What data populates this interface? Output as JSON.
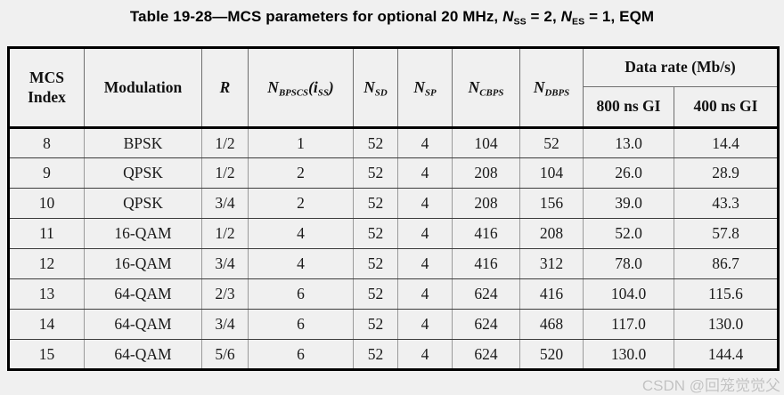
{
  "colors": {
    "page_background": "#f0f0f0",
    "border_outer": "#000000",
    "grid_horizontal": "#3c3c3c",
    "grid_vertical": "#9a9a9a",
    "watermark": "#9b9b9b"
  },
  "title": {
    "segments": [
      {
        "t": "Table 19-28—MCS parameters for optional 20 MHz, "
      },
      {
        "t": "N",
        "i": true
      },
      {
        "t": "SS",
        "sub": true
      },
      {
        "t": " = 2, "
      },
      {
        "t": "N",
        "i": true
      },
      {
        "t": "ES",
        "sub": true
      },
      {
        "t": " = 1, EQM"
      }
    ]
  },
  "watermark": "CSDN @回笼觉觉父",
  "table": {
    "header": {
      "mcs_index": [
        {
          "t": "MCS"
        },
        {
          "br": true
        },
        {
          "t": "Index"
        }
      ],
      "modulation": [
        {
          "t": "Modulation"
        }
      ],
      "r": [
        {
          "t": "R",
          "i": true
        }
      ],
      "n_bpscs": [
        {
          "t": "N",
          "i": true
        },
        {
          "t": "BPSCS",
          "sub": true,
          "i": true
        },
        {
          "t": "(i",
          "i": true
        },
        {
          "t": "SS",
          "sub": true,
          "i": true
        },
        {
          "t": ")",
          "i": true
        }
      ],
      "n_sd": [
        {
          "t": "N",
          "i": true
        },
        {
          "t": "SD",
          "sub": true,
          "i": true
        }
      ],
      "n_sp": [
        {
          "t": "N",
          "i": true
        },
        {
          "t": "SP",
          "sub": true,
          "i": true
        }
      ],
      "n_cbps": [
        {
          "t": "N",
          "i": true
        },
        {
          "t": "CBPS",
          "sub": true,
          "i": true
        }
      ],
      "n_dbps": [
        {
          "t": "N",
          "i": true
        },
        {
          "t": "DBPS",
          "sub": true,
          "i": true
        }
      ],
      "data_rate": [
        {
          "t": "Data rate (Mb/s)"
        }
      ],
      "gi_800": [
        {
          "t": "800 ns GI"
        }
      ],
      "gi_400": [
        {
          "t": "400 ns GI"
        }
      ]
    },
    "column_ids": [
      "mcs-index",
      "modulation",
      "r",
      "n-bpscs",
      "n-sd",
      "n-sp",
      "n-cbps",
      "n-dbps",
      "rate-800ns",
      "rate-400ns"
    ],
    "rows": [
      [
        "8",
        "BPSK",
        "1/2",
        "1",
        "52",
        "4",
        "104",
        "52",
        "13.0",
        "14.4"
      ],
      [
        "9",
        "QPSK",
        "1/2",
        "2",
        "52",
        "4",
        "208",
        "104",
        "26.0",
        "28.9"
      ],
      [
        "10",
        "QPSK",
        "3/4",
        "2",
        "52",
        "4",
        "208",
        "156",
        "39.0",
        "43.3"
      ],
      [
        "11",
        "16-QAM",
        "1/2",
        "4",
        "52",
        "4",
        "416",
        "208",
        "52.0",
        "57.8"
      ],
      [
        "12",
        "16-QAM",
        "3/4",
        "4",
        "52",
        "4",
        "416",
        "312",
        "78.0",
        "86.7"
      ],
      [
        "13",
        "64-QAM",
        "2/3",
        "6",
        "52",
        "4",
        "624",
        "416",
        "104.0",
        "115.6"
      ],
      [
        "14",
        "64-QAM",
        "3/4",
        "6",
        "52",
        "4",
        "624",
        "468",
        "117.0",
        "130.0"
      ],
      [
        "15",
        "64-QAM",
        "5/6",
        "6",
        "52",
        "4",
        "624",
        "520",
        "130.0",
        "144.4"
      ]
    ]
  }
}
